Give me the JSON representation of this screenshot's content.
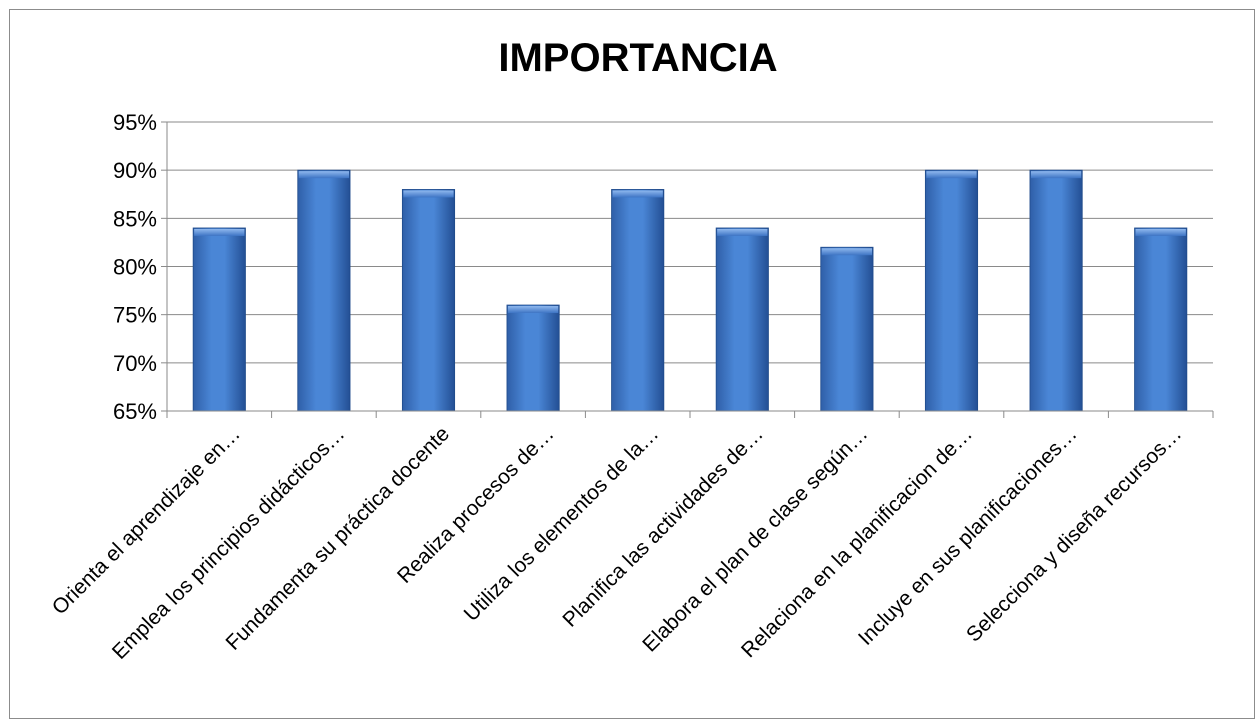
{
  "chart_data": {
    "type": "bar",
    "title": "IMPORTANCIA",
    "xlabel": "",
    "ylabel": "",
    "ylim": [
      0.65,
      0.95
    ],
    "yticks": [
      "65%",
      "70%",
      "75%",
      "80%",
      "85%",
      "90%",
      "95%"
    ],
    "grid": true,
    "legend": "none",
    "bar_color": "#3a72c8",
    "categories": [
      "Orienta el aprendizaje en…",
      "Emplea los principios didácticos…",
      "Fundamenta su práctica docente",
      "Realiza procesos de…",
      "Utiliza los  elementos de la…",
      "Planifica las actividades de…",
      "Elabora el plan de clase según…",
      "Relaciona en la planificacion de…",
      "Incluye en sus planificaciones…",
      "Selecciona y diseña recursos…"
    ],
    "values": [
      0.84,
      0.9,
      0.88,
      0.76,
      0.88,
      0.84,
      0.82,
      0.9,
      0.9,
      0.84
    ]
  }
}
